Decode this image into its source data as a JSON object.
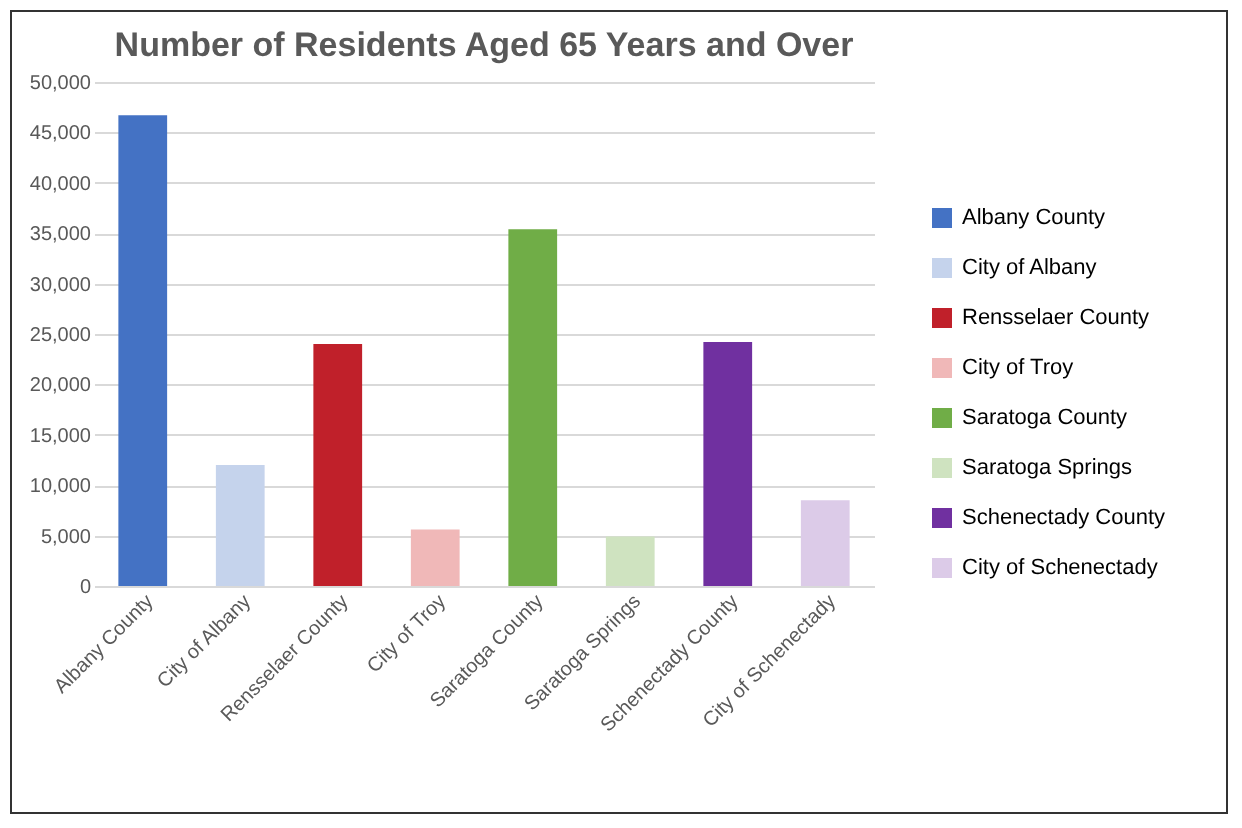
{
  "chart_data": {
    "type": "bar",
    "title": "Number of Residents Aged 65 Years and Over",
    "categories": [
      "Albany County",
      "City of Albany",
      "Rensselaer County",
      "City of Troy",
      "Saratoga County",
      "Saratoga Springs",
      "Schenectady County",
      "City of Schenectady"
    ],
    "series": [
      {
        "name": "Albany County",
        "color": "#4472c4",
        "values": [
          46700,
          null,
          null,
          null,
          null,
          null,
          null,
          null
        ]
      },
      {
        "name": "City of Albany",
        "color": "#c5d3ec",
        "values": [
          null,
          12000,
          null,
          null,
          null,
          null,
          null,
          null
        ]
      },
      {
        "name": "Rensselaer County",
        "color": "#c0202a",
        "values": [
          null,
          null,
          24000,
          null,
          null,
          null,
          null,
          null
        ]
      },
      {
        "name": "City of Troy",
        "color": "#f0b8b8",
        "values": [
          null,
          null,
          null,
          5600,
          null,
          null,
          null,
          null
        ]
      },
      {
        "name": "Saratoga County",
        "color": "#70ad47",
        "values": [
          null,
          null,
          null,
          null,
          35400,
          null,
          null,
          null
        ]
      },
      {
        "name": "Saratoga Springs",
        "color": "#cfe3c0",
        "values": [
          null,
          null,
          null,
          null,
          null,
          4900,
          null,
          null
        ]
      },
      {
        "name": "Schenectady County",
        "color": "#7030a0",
        "values": [
          null,
          null,
          null,
          null,
          null,
          null,
          24200,
          null
        ]
      },
      {
        "name": "City of Schenectady",
        "color": "#dccbe8",
        "values": [
          null,
          null,
          null,
          null,
          null,
          null,
          null,
          8500
        ]
      }
    ],
    "ylim": [
      0,
      50000
    ],
    "yticks": [
      0,
      {
        "value": 5000,
        "label": "5,000"
      },
      {
        "value": 10000,
        "label": "10,000"
      },
      {
        "value": 15000,
        "label": "15,000"
      },
      {
        "value": 20000,
        "label": "20,000"
      },
      {
        "value": 25000,
        "label": "25,000"
      },
      {
        "value": 30000,
        "label": "30,000"
      },
      {
        "value": 35000,
        "label": "35,000"
      },
      {
        "value": 40000,
        "label": "40,000"
      },
      {
        "value": 45000,
        "label": "45,000"
      },
      {
        "value": 50000,
        "label": "50,000"
      }
    ],
    "grid": "y",
    "legend": "right"
  }
}
